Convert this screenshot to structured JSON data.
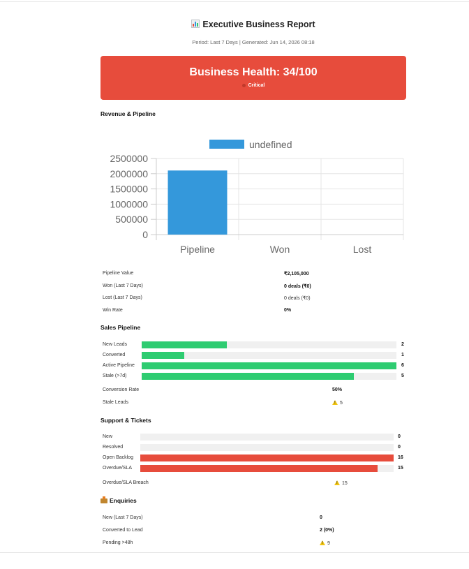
{
  "header": {
    "title": "Executive Business Report",
    "subtitle": "Period: Last 7 Days | Generated: Jun 14, 2026 08:18"
  },
  "health": {
    "title": "Business Health: 34/100",
    "status": "Critical",
    "color": "#e74c3c"
  },
  "revenue": {
    "section_title": "Revenue & Pipeline",
    "rows": [
      {
        "label": "Pipeline Value",
        "value": "₹2,105,000"
      },
      {
        "label": "Won (Last 7 Days)",
        "value": "0 deals (₹0)"
      },
      {
        "label": "Lost (Last 7 Days)",
        "value": "0 deals (₹0)"
      },
      {
        "label": "Win Rate",
        "value": "0%"
      }
    ]
  },
  "chart_data": {
    "type": "bar",
    "categories": [
      "Pipeline",
      "Won",
      "Lost"
    ],
    "series": [
      {
        "name": "undefined",
        "values": [
          2105000,
          0,
          0
        ],
        "color": "#3498db"
      }
    ],
    "ylim": [
      0,
      2500000
    ],
    "yticks": [
      "2500000",
      "2000000",
      "1500000",
      "1000000",
      "500000",
      "0"
    ],
    "legend": "top-center",
    "grid": true
  },
  "sales": {
    "section_title": "Sales Pipeline",
    "bars": [
      {
        "label": "New Leads",
        "value": "2",
        "fraction": 0.333
      },
      {
        "label": "Converted",
        "value": "1",
        "fraction": 0.167
      },
      {
        "label": "Active Pipeline",
        "value": "6",
        "fraction": 1.0
      },
      {
        "label": "Stale (>7d)",
        "value": "5",
        "fraction": 0.833
      }
    ],
    "bar_color": "#2ecc71",
    "conversion_label": "Conversion Rate",
    "conversion_value": "50%",
    "stale_label": "Stale Leads",
    "stale_value": "5"
  },
  "support": {
    "section_title": "Support & Tickets",
    "bars": [
      {
        "label": "New",
        "value": "0",
        "fraction": 0
      },
      {
        "label": "Resolved",
        "value": "0",
        "fraction": 0
      },
      {
        "label": "Open Backlog",
        "value": "16",
        "fraction": 1.0
      },
      {
        "label": "Overdue/SLA",
        "value": "15",
        "fraction": 0.9375
      }
    ],
    "bar_color": "#e74c3c",
    "breach_label": "Overdue/SLA Breach",
    "breach_value": "15"
  },
  "enquiries": {
    "section_title": "Enquiries",
    "rows": [
      {
        "label": "New (Last 7 Days)",
        "value": "0"
      },
      {
        "label": "Converted to Lead",
        "value": "2 (0%)"
      },
      {
        "label": "Pending >48h",
        "value": "9"
      }
    ]
  }
}
